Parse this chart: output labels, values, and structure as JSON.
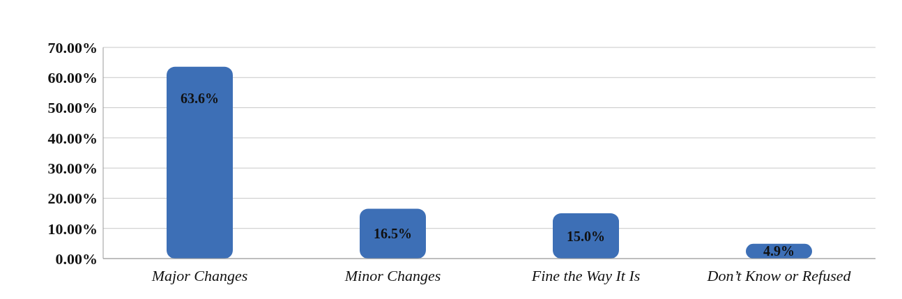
{
  "chart_data": {
    "type": "bar",
    "categories": [
      "Major Changes",
      "Minor Changes",
      "Fine the Way It Is",
      "Don’t Know or Refused"
    ],
    "values": [
      63.6,
      16.5,
      15.0,
      4.9
    ],
    "color": "#3d6fb6",
    "value_labels": [
      "63.6%",
      "16.5%",
      "15.0%",
      "4.9%"
    ],
    "ylim": [
      0,
      70
    ],
    "yticks": [
      {
        "value": 0,
        "label": "0.00%"
      },
      {
        "value": 10,
        "label": "10.00%"
      },
      {
        "value": 20,
        "label": "20.00%"
      },
      {
        "value": 30,
        "label": "30.00%"
      },
      {
        "value": 40,
        "label": "40.00%"
      },
      {
        "value": 50,
        "label": "50.00%"
      },
      {
        "value": 60,
        "label": "60.00%"
      },
      {
        "value": 70,
        "label": "70.00%"
      }
    ],
    "grid": "y"
  }
}
